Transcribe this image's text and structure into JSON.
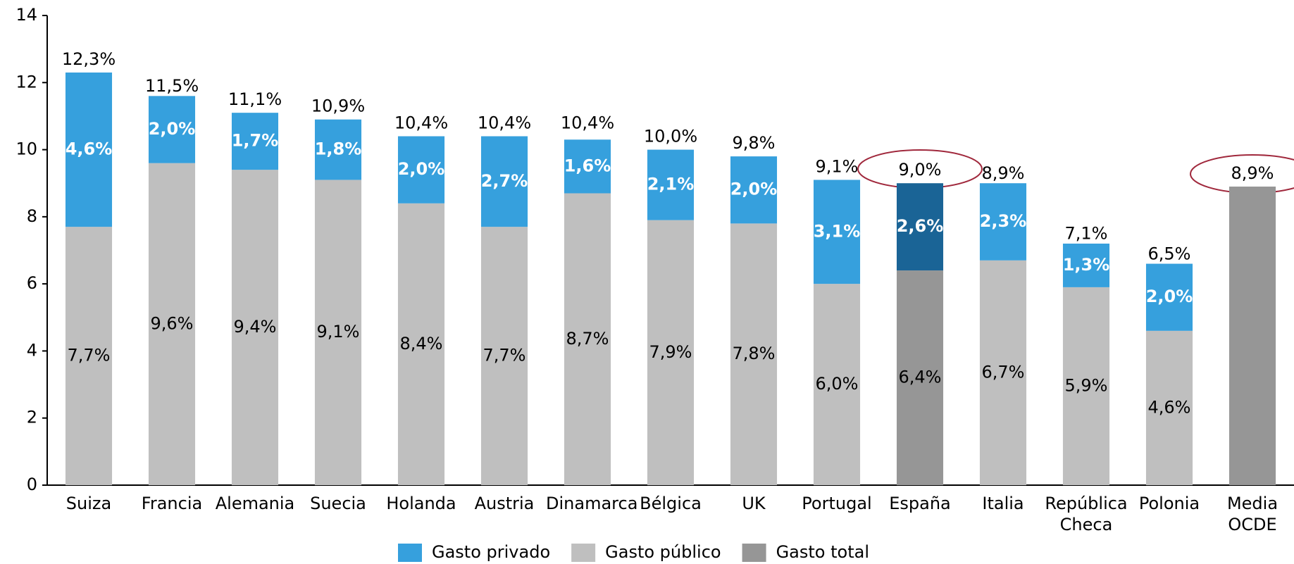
{
  "chart_data": {
    "type": "stacked_bar",
    "categories": [
      "Suiza",
      "Francia",
      "Alemania",
      "Suecia",
      "Holanda",
      "Austria",
      "Dinamarca",
      "Bélgica",
      "UK",
      "Portugal",
      "España",
      "Italia",
      "República Checa",
      "Polonia",
      "Media OCDE"
    ],
    "series": [
      {
        "name": "Gasto privado",
        "color": "#36a0dd",
        "highlight_color": "#1a6496",
        "label_color": "#ffffff",
        "values": [
          4.6,
          2.0,
          1.7,
          1.8,
          2.0,
          2.7,
          1.6,
          2.1,
          2.0,
          3.1,
          2.6,
          2.3,
          1.3,
          2.0,
          null
        ],
        "value_labels": [
          "4,6%",
          "2,0%",
          "1,7%",
          "1,8%",
          "2,0%",
          "2,7%",
          "1,6%",
          "2,1%",
          "2,0%",
          "3,1%",
          "2,6%",
          "2,3%",
          "1,3%",
          "2,0%",
          null
        ]
      },
      {
        "name": "Gasto público",
        "color": "#bfbfbf",
        "highlight_color": "#969696",
        "label_color": "#000000",
        "values": [
          7.7,
          9.6,
          9.4,
          9.1,
          8.4,
          7.7,
          8.7,
          7.9,
          7.8,
          6.0,
          6.4,
          6.7,
          5.9,
          4.6,
          null
        ],
        "value_labels": [
          "7,7%",
          "9,6%",
          "9,4%",
          "9,1%",
          "8,4%",
          "7,7%",
          "8,7%",
          "7,9%",
          "7,8%",
          "6,0%",
          "6,4%",
          "6,7%",
          "5,9%",
          "4,6%",
          null
        ]
      },
      {
        "name": "Gasto total",
        "color": "#969696",
        "values": [
          null,
          null,
          null,
          null,
          null,
          null,
          null,
          null,
          null,
          null,
          null,
          null,
          null,
          null,
          8.9
        ]
      }
    ],
    "totals": {
      "values": [
        12.3,
        11.5,
        11.1,
        10.9,
        10.4,
        10.4,
        10.4,
        10.0,
        9.8,
        9.1,
        9.0,
        8.9,
        7.1,
        6.5,
        8.9
      ],
      "value_labels": [
        "12,3%",
        "11,5%",
        "11,1%",
        "10,9%",
        "10,4%",
        "10,4%",
        "10,4%",
        "10,0%",
        "9,8%",
        "9,1%",
        "9,0%",
        "8,9%",
        "7,1%",
        "6,5%",
        "8,9%"
      ]
    },
    "highlight_category": "España",
    "ylim": [
      0,
      14
    ],
    "yticks": [
      0,
      2,
      4,
      6,
      8,
      10,
      12,
      14
    ],
    "grid": false,
    "legend": "bottom"
  }
}
